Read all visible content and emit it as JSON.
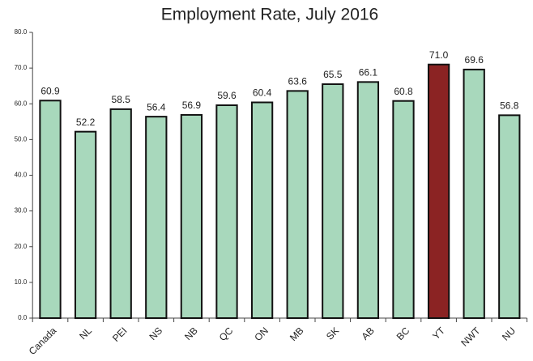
{
  "chart_data": {
    "type": "bar",
    "title": "Employment Rate, July 2016",
    "categories": [
      "Canada",
      "NL",
      "PEI",
      "NS",
      "NB",
      "QC",
      "ON",
      "MB",
      "SK",
      "AB",
      "BC",
      "YT",
      "NWT",
      "NU"
    ],
    "values": [
      60.9,
      52.2,
      58.5,
      56.4,
      56.9,
      59.6,
      60.4,
      63.6,
      65.5,
      66.1,
      60.8,
      71.0,
      69.6,
      56.8
    ],
    "value_labels": [
      "60.9",
      "52.2",
      "58.5",
      "56.4",
      "56.9",
      "59.6",
      "60.4",
      "63.6",
      "65.5",
      "66.1",
      "60.8",
      "71.0",
      "69.6",
      "56.8"
    ],
    "colors": [
      "#a8d8bc",
      "#a8d8bc",
      "#a8d8bc",
      "#a8d8bc",
      "#a8d8bc",
      "#a8d8bc",
      "#a8d8bc",
      "#a8d8bc",
      "#a8d8bc",
      "#a8d8bc",
      "#a8d8bc",
      "#8b2323",
      "#a8d8bc",
      "#a8d8bc"
    ],
    "ylim": [
      0,
      80
    ],
    "yticks": [
      {
        "value": 0,
        "label": "0.0"
      },
      {
        "value": 10,
        "label": "10.0"
      },
      {
        "value": 20,
        "label": "20.0"
      },
      {
        "value": 30,
        "label": "30.0"
      },
      {
        "value": 40,
        "label": "40.0"
      },
      {
        "value": 50,
        "label": "50.0"
      },
      {
        "value": 60,
        "label": "60.0"
      },
      {
        "value": 70,
        "label": "70.0"
      },
      {
        "value": 80,
        "label": "80.0"
      }
    ],
    "grid": false
  }
}
